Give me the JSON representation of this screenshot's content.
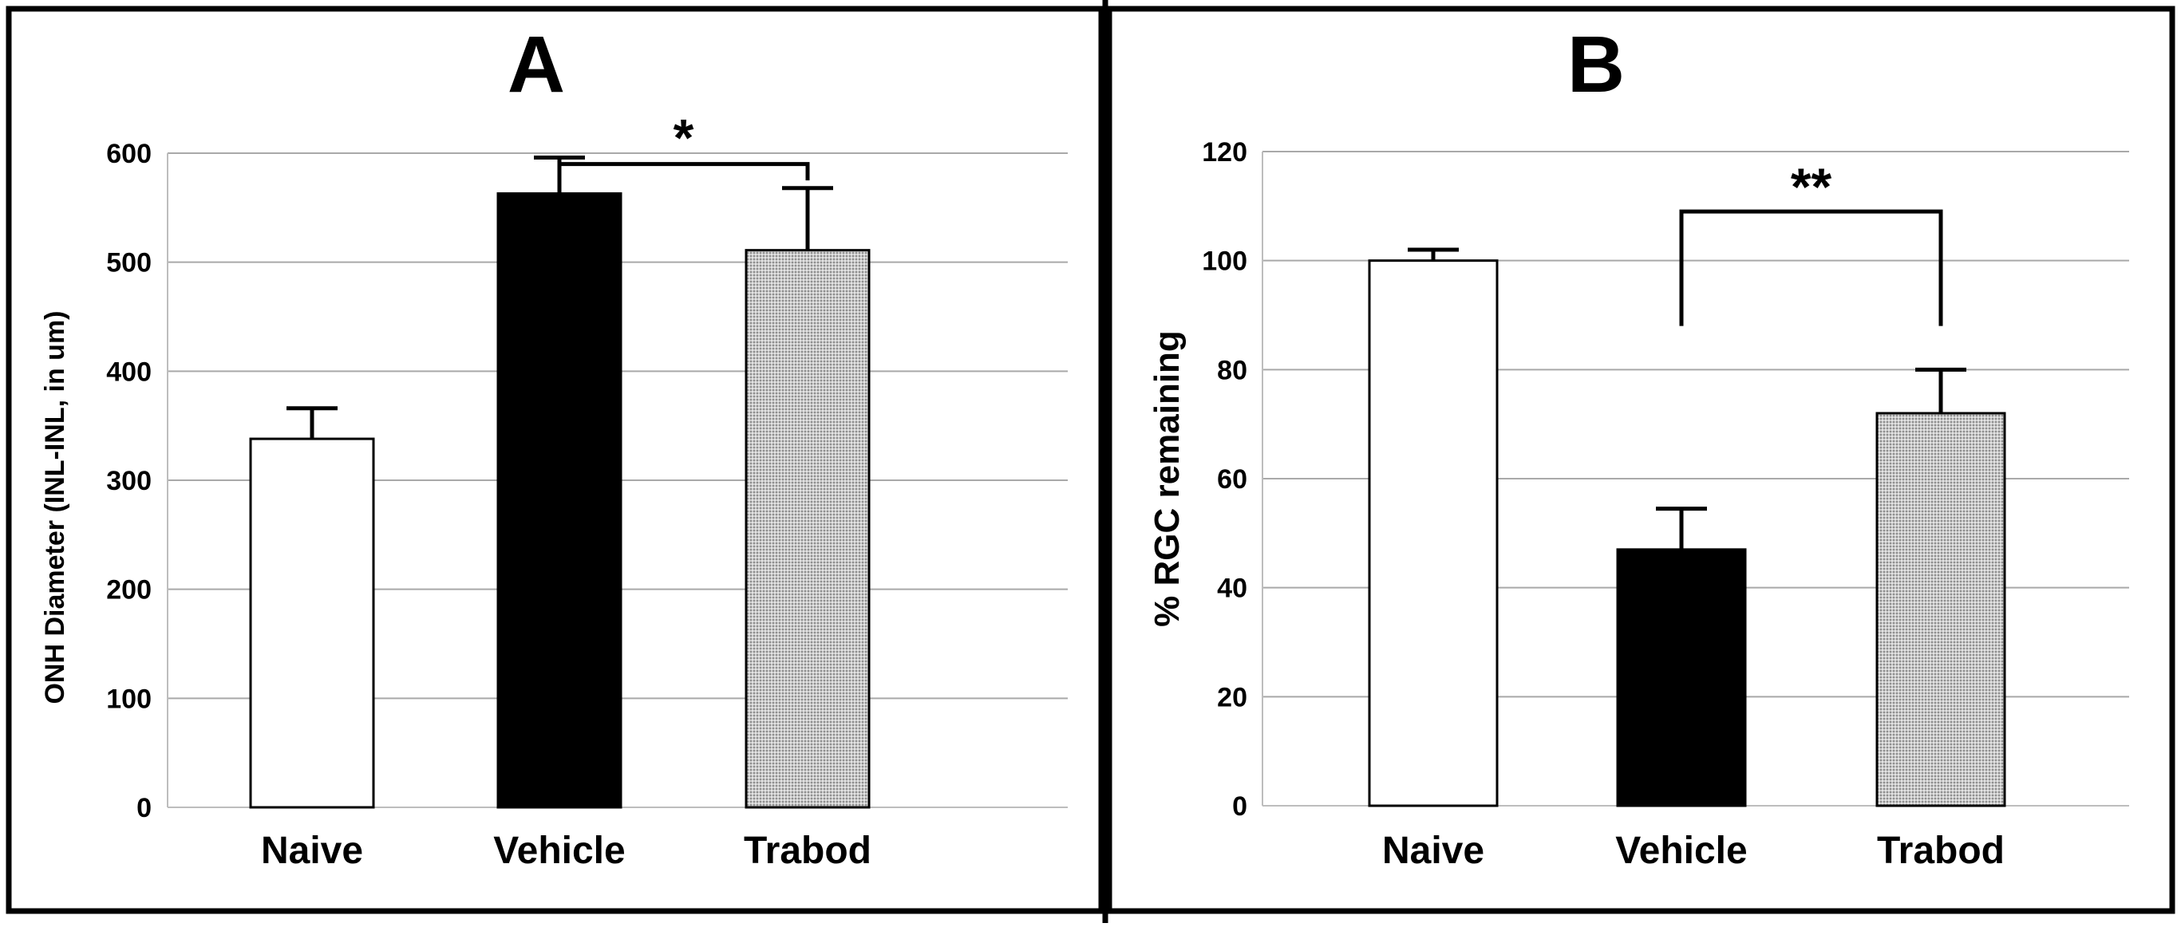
{
  "chart_data": [
    {
      "panel": "A",
      "type": "bar",
      "title": "A",
      "xlabel": "",
      "ylabel": "ONH Diameter (INL-INL, in um)",
      "ylim": [
        0,
        600
      ],
      "yticks": [
        0,
        100,
        200,
        300,
        400,
        500,
        600
      ],
      "grid": true,
      "categories": [
        "Naive",
        "Vehicle",
        "Trabod"
      ],
      "values": [
        338,
        563,
        511
      ],
      "errors": [
        28,
        33,
        57
      ],
      "bar_fills": [
        "#ffffff",
        "#000000",
        "pattern-gray"
      ],
      "significance": {
        "from": 1,
        "to": 2,
        "label": "*",
        "y": 590,
        "drop_to": [
          570,
          575
        ]
      }
    },
    {
      "panel": "B",
      "type": "bar",
      "title": "B",
      "xlabel": "",
      "ylabel": "% RGC remaining",
      "ylim": [
        0,
        120
      ],
      "yticks": [
        0,
        20,
        40,
        60,
        80,
        100,
        120
      ],
      "grid": true,
      "categories": [
        "Naive",
        "Vehicle",
        "Trabod"
      ],
      "values": [
        100,
        47,
        72
      ],
      "errors": [
        2,
        7.5,
        8
      ],
      "bar_fills": [
        "#ffffff",
        "#000000",
        "pattern-gray"
      ],
      "significance": {
        "from": 1,
        "to": 2,
        "label": "**",
        "y": 109,
        "drop_to": [
          88,
          88
        ]
      }
    }
  ]
}
